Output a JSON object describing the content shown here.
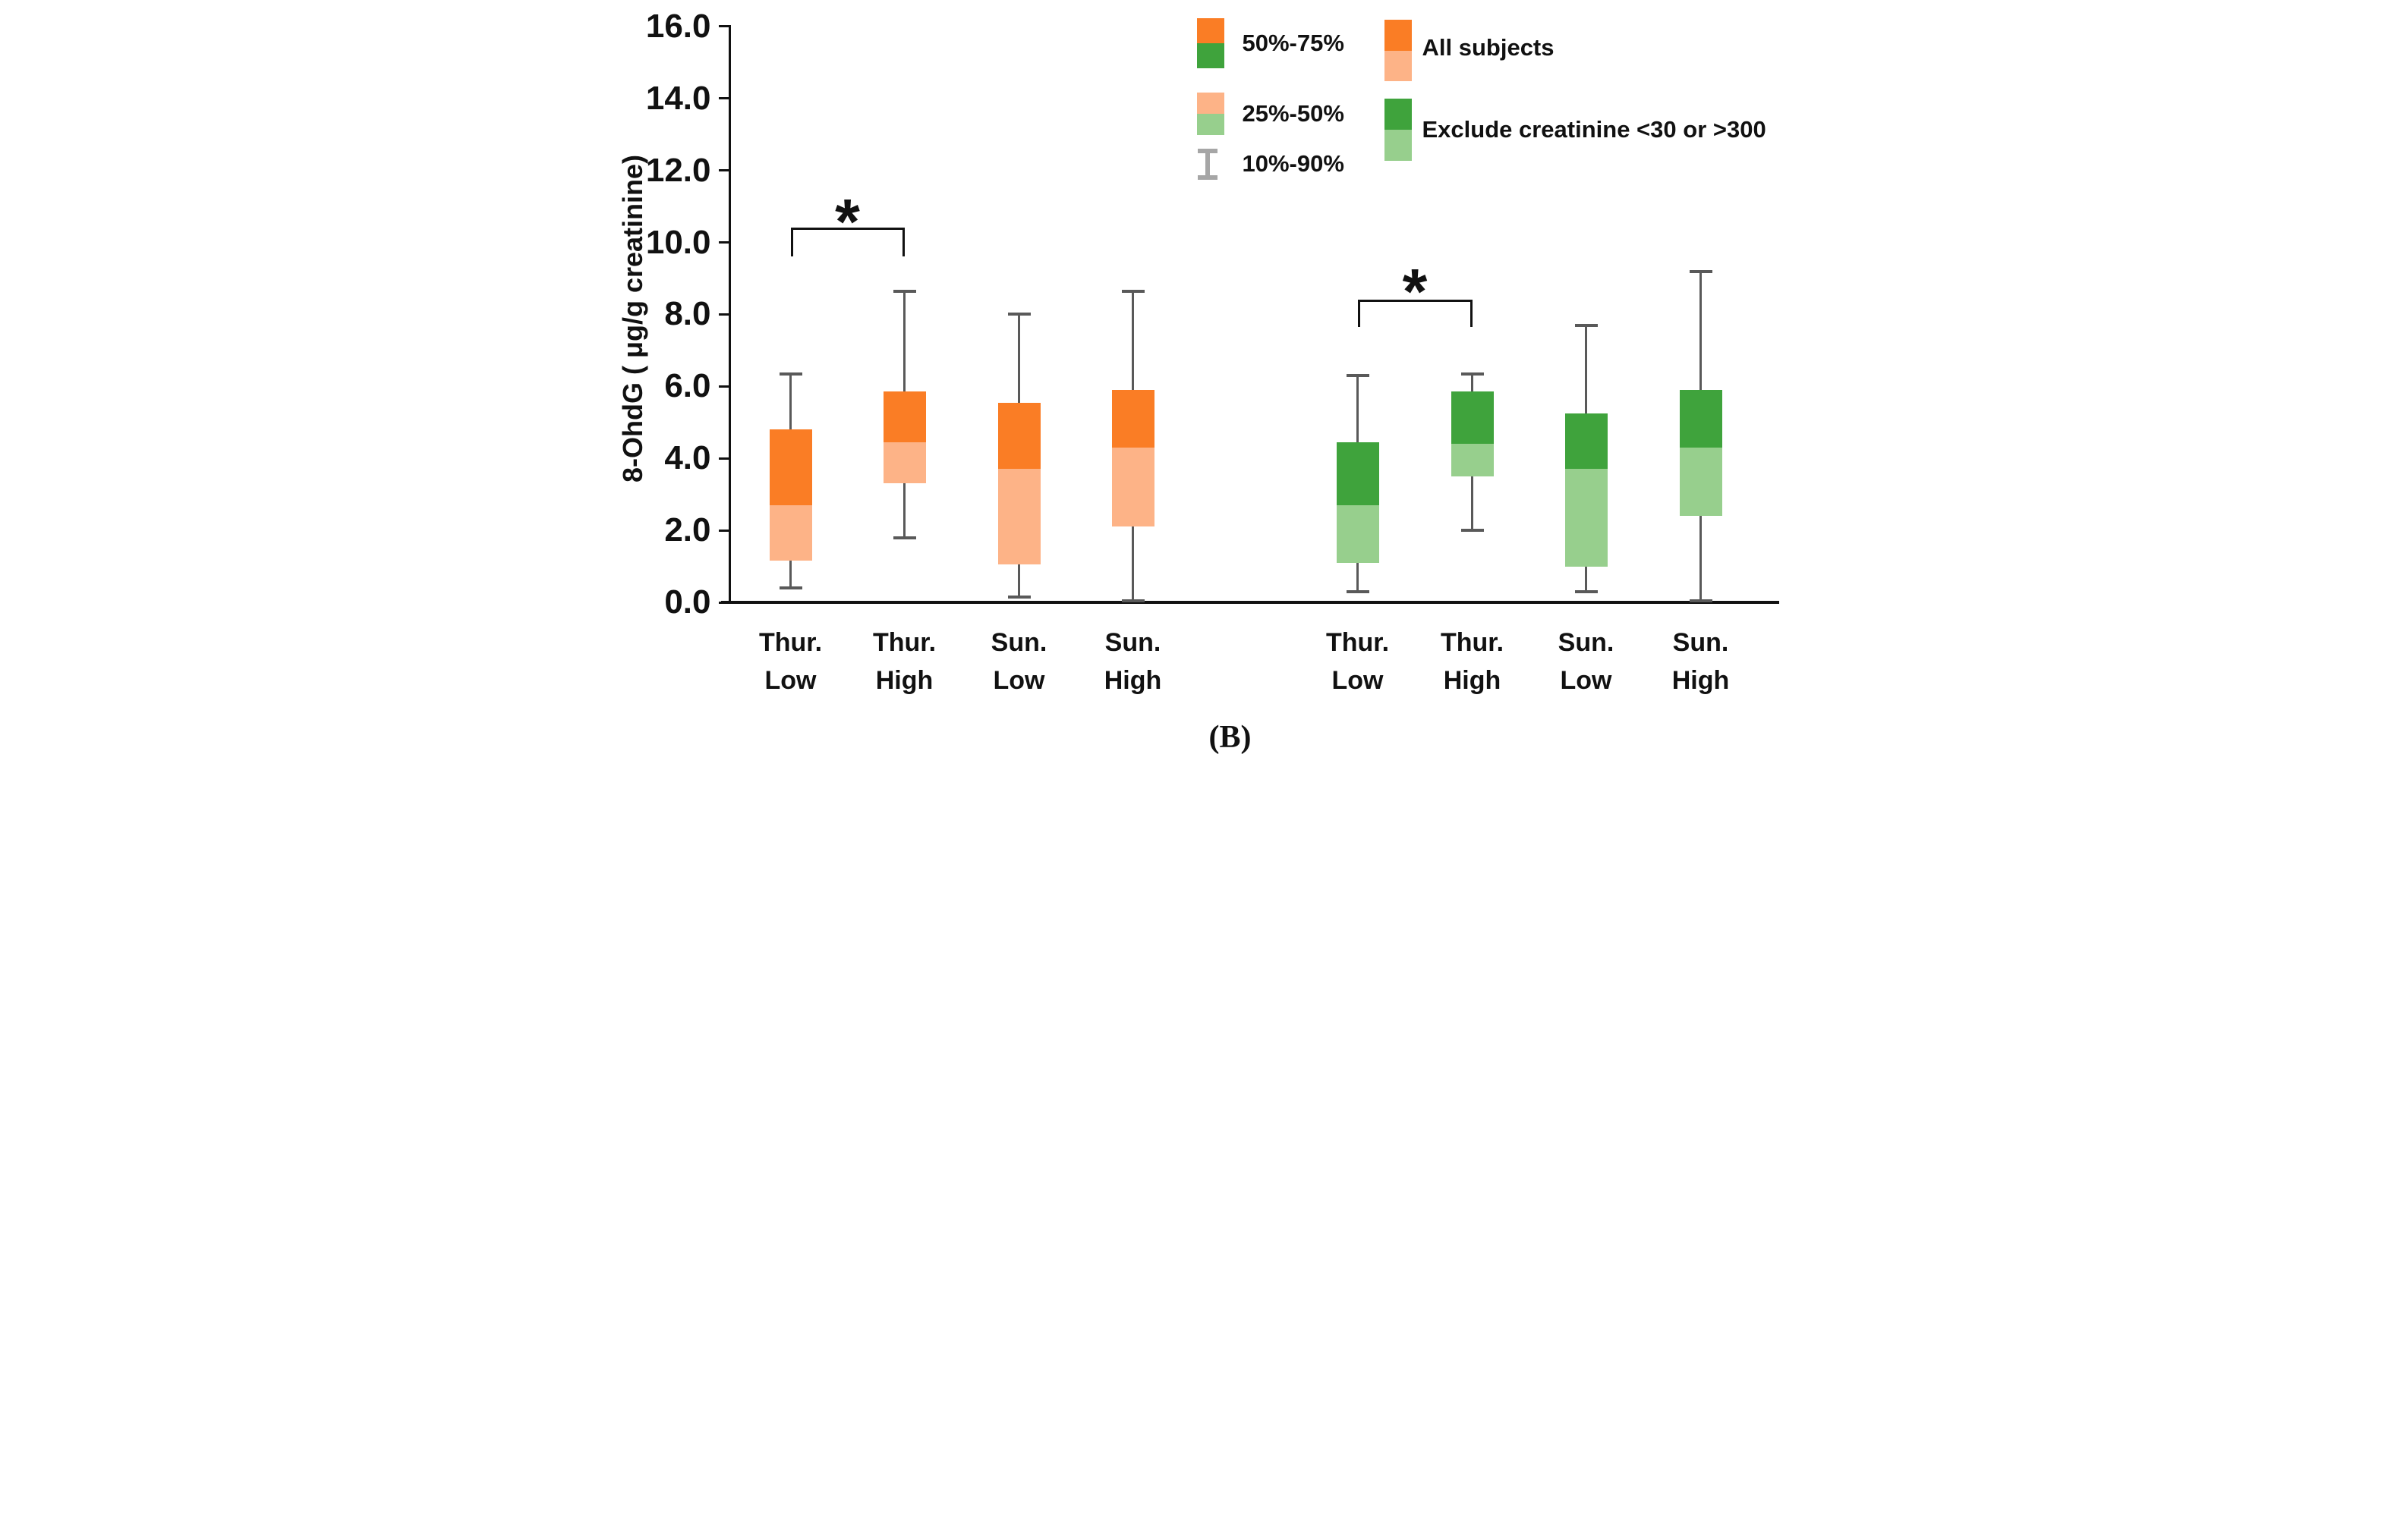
{
  "caption": "(B)",
  "axis": {
    "y_label": "8-OhdG ( μg/g creatinine)",
    "y_ticks": [
      0,
      2,
      4,
      6,
      8,
      10,
      12,
      14,
      16
    ],
    "y_tick_labels": [
      "0.0",
      "2.0",
      "4.0",
      "6.0",
      "8.0",
      "10.0",
      "12.0",
      "14.0",
      "16.0"
    ],
    "y_min": 0.0,
    "y_max": 16.0
  },
  "colors": {
    "dark_orange": "#FA7D25",
    "light_orange": "#FDB387",
    "dark_green": "#3FA33C",
    "light_green": "#97CF8D",
    "whisker": "#595959",
    "legend_whisker": "#A6A6A6",
    "axis": "#111111"
  },
  "legend": {
    "percentile_items": [
      {
        "label": "50%-75%",
        "swatch": [
          "dark_orange",
          "dark_green"
        ]
      },
      {
        "label": "25%-50%",
        "swatch": [
          "light_orange",
          "light_green"
        ]
      },
      {
        "label": "10%-90%",
        "swatch": "whisker-glyph"
      }
    ],
    "series_items": [
      {
        "label": "All subjects",
        "swatch": [
          "dark_orange",
          "light_orange"
        ]
      },
      {
        "label": "Exclude creatinine <30 or >300",
        "swatch": [
          "dark_green",
          "light_green"
        ]
      }
    ]
  },
  "chart_data": {
    "type": "boxplot",
    "title": "",
    "xlabel": "",
    "ylabel": "8-OhdG ( μg/g creatinine)",
    "ylim": [
      0,
      16
    ],
    "grid": false,
    "box_semantics": {
      "whisker_low": "p10",
      "box_low": "p25",
      "box_mid": "p50",
      "box_high": "p75",
      "whisker_high": "p90"
    },
    "categories": [
      "Thur.\nLow",
      "Thur.\nHigh",
      "Sun.\nLow",
      "Sun.\nHigh"
    ],
    "series": [
      {
        "name": "All subjects",
        "colors": {
          "upper": "dark_orange",
          "lower": "light_orange"
        },
        "boxes": [
          {
            "category": "Thur. Low",
            "p10": 0.4,
            "p25": 1.15,
            "p50": 2.7,
            "p75": 4.8,
            "p90": 6.35
          },
          {
            "category": "Thur. High",
            "p10": 1.8,
            "p25": 3.3,
            "p50": 4.45,
            "p75": 5.85,
            "p90": 8.65
          },
          {
            "category": "Sun. Low",
            "p10": 0.15,
            "p25": 1.05,
            "p50": 3.7,
            "p75": 5.55,
            "p90": 8.0
          },
          {
            "category": "Sun. High",
            "p10": 0.05,
            "p25": 2.1,
            "p50": 4.3,
            "p75": 5.9,
            "p90": 8.65
          }
        ]
      },
      {
        "name": "Exclude creatinine <30 or >300",
        "colors": {
          "upper": "dark_green",
          "lower": "light_green"
        },
        "boxes": [
          {
            "category": "Thur. Low",
            "p10": 0.3,
            "p25": 1.1,
            "p50": 2.7,
            "p75": 4.45,
            "p90": 6.3
          },
          {
            "category": "Thur. High",
            "p10": 2.0,
            "p25": 3.5,
            "p50": 4.4,
            "p75": 5.85,
            "p90": 6.35
          },
          {
            "category": "Sun. Low",
            "p10": 0.3,
            "p25": 1.0,
            "p50": 3.7,
            "p75": 5.25,
            "p90": 7.7
          },
          {
            "category": "Sun. High",
            "p10": 0.05,
            "p25": 2.4,
            "p50": 4.3,
            "p75": 5.9,
            "p90": 9.2
          }
        ]
      }
    ],
    "significance": [
      {
        "series": "All subjects",
        "between": [
          "Thur. Low",
          "Thur. High"
        ],
        "label": "*"
      },
      {
        "series": "Exclude creatinine <30 or >300",
        "between": [
          "Thur. Low",
          "Thur. High"
        ],
        "label": "*"
      }
    ]
  }
}
